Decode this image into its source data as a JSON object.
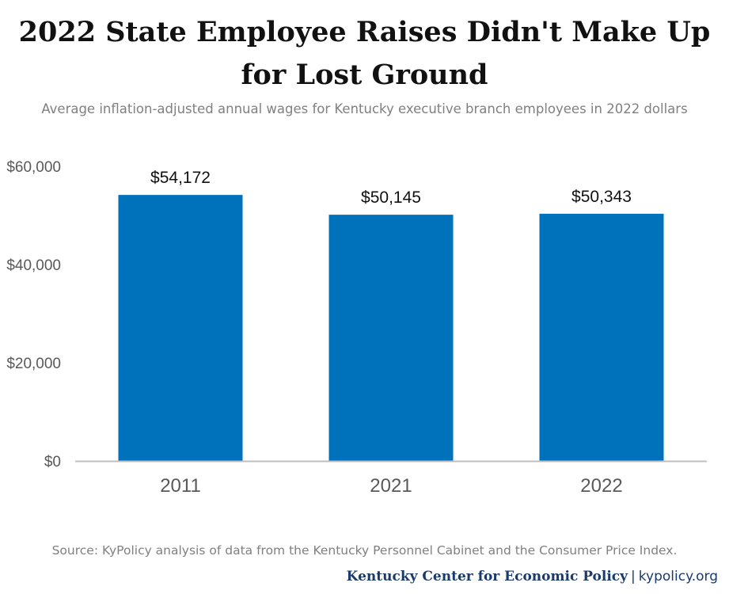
{
  "header": {
    "title_line1": "2022 State Employee Raises Didn't Make Up",
    "title_line2": "for Lost Ground",
    "subtitle": "Average inflation-adjusted annual wages for Kentucky executive branch employees in 2022 dollars"
  },
  "chart_data": {
    "type": "bar",
    "title": "2022 State Employee Raises Didn't Make Up for Lost Ground",
    "subtitle": "Average inflation-adjusted annual wages for Kentucky executive branch employees in 2022 dollars",
    "categories": [
      "2011",
      "2021",
      "2022"
    ],
    "values": [
      54172,
      50145,
      50343
    ],
    "data_labels": [
      "$54,172",
      "$50,145",
      "$50,343"
    ],
    "ylim": [
      0,
      60000
    ],
    "yticks": [
      0,
      20000,
      40000,
      60000
    ],
    "ytick_labels": [
      "$0",
      "$20,000",
      "$40,000",
      "$60,000"
    ],
    "xlabel": "",
    "ylabel": "",
    "grid": false,
    "legend": "none",
    "bar_color": "#0072bc"
  },
  "footer": {
    "source": "Source: KyPolicy analysis of data from the Kentucky Personnel Cabinet and the Consumer Price Index.",
    "org": "Kentucky Center for Economic Policy",
    "separator": "|",
    "site": "kypolicy.org"
  },
  "colors": {
    "bar": "#0072bc",
    "axis": "#bfbfbf",
    "tick_text": "#595959",
    "footer_text": "#1a3a6b"
  }
}
